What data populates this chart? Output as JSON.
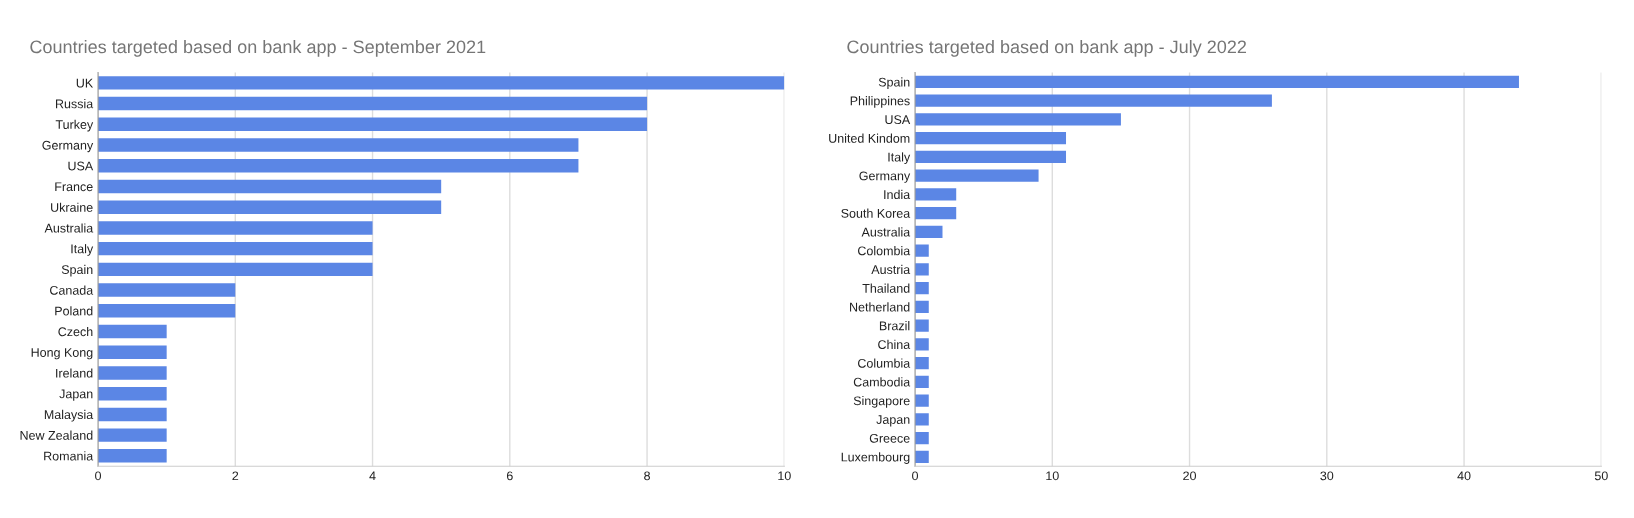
{
  "chart_data": [
    {
      "type": "bar",
      "orientation": "horizontal",
      "title": "Countries targeted based on bank app - September 2021",
      "categories": [
        "UK",
        "Russia",
        "Turkey",
        "Germany",
        "USA",
        "France",
        "Ukraine",
        "Australia",
        "Italy",
        "Spain",
        "Canada",
        "Poland",
        "Czech",
        "Hong Kong",
        "Ireland",
        "Japan",
        "Malaysia",
        "New Zealand",
        "Romania"
      ],
      "values": [
        10,
        8,
        8,
        7,
        7,
        5,
        5,
        4,
        4,
        4,
        2,
        2,
        1,
        1,
        1,
        1,
        1,
        1,
        1
      ],
      "color": "#5b86e5",
      "xlim": [
        0,
        10
      ],
      "xticks": [
        0,
        2,
        4,
        6,
        8,
        10
      ],
      "grid": "x"
    },
    {
      "type": "bar",
      "orientation": "horizontal",
      "title": "Countries targeted based on bank app - July 2022",
      "categories": [
        "Spain",
        "Philippines",
        "USA",
        "United Kindom",
        "Italy",
        "Germany",
        "India",
        "South Korea",
        "Australia",
        "Colombia",
        "Austria",
        "Thailand",
        "Netherland",
        "Brazil",
        "China",
        "Columbia",
        "Cambodia",
        "Singapore",
        "Japan",
        "Greece",
        "Luxembourg"
      ],
      "values": [
        44,
        26,
        15,
        11,
        11,
        9,
        3,
        3,
        2,
        1,
        1,
        1,
        1,
        1,
        1,
        1,
        1,
        1,
        1,
        1,
        1
      ],
      "color": "#5b86e5",
      "xlim": [
        0,
        50
      ],
      "xticks": [
        0,
        10,
        20,
        30,
        40,
        50
      ],
      "grid": "x"
    }
  ]
}
